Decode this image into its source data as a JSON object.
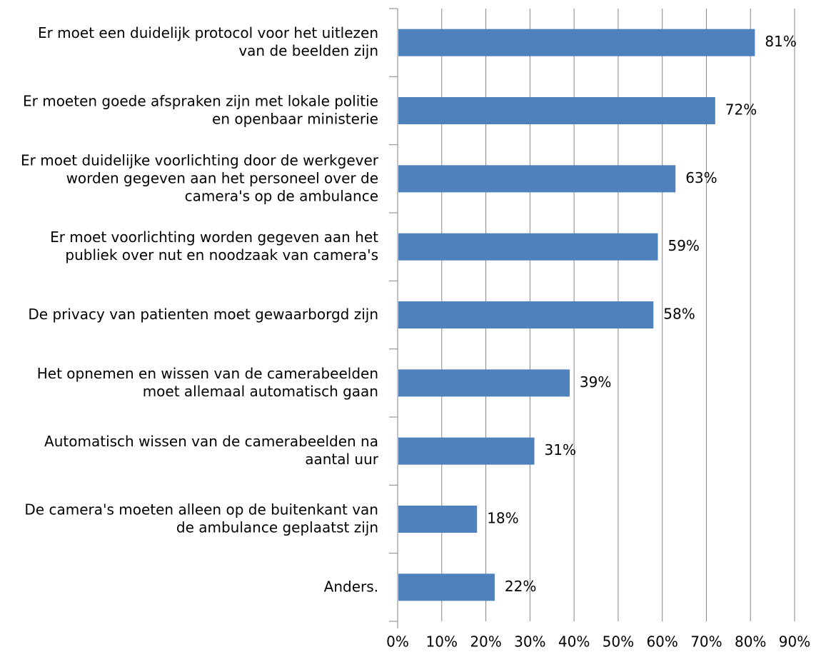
{
  "chart_data": {
    "type": "bar",
    "orientation": "horizontal",
    "categories": [
      [
        "Er moet een duidelijk protocol voor het uitlezen",
        "van de beelden zijn"
      ],
      [
        "Er moeten goede afspraken zijn met lokale politie",
        "en openbaar ministerie"
      ],
      [
        "Er moet duidelijke voorlichting door de werkgever",
        "worden gegeven aan het personeel over de",
        "camera's op de ambulance"
      ],
      [
        "Er moet voorlichting worden gegeven aan het",
        "publiek over nut en noodzaak van camera's"
      ],
      [
        "De privacy van patienten moet gewaarborgd zijn"
      ],
      [
        "Het opnemen en wissen van de camerabeelden",
        "moet allemaal automatisch gaan"
      ],
      [
        "Automatisch wissen van de camerabeelden na",
        "aantal uur"
      ],
      [
        "De camera's moeten alleen op de buitenkant van",
        "de ambulance geplaatst zijn"
      ],
      [
        "Anders."
      ]
    ],
    "values": [
      81,
      72,
      63,
      59,
      58,
      39,
      31,
      18,
      22
    ],
    "data_labels": [
      "81%",
      "72%",
      "63%",
      "59%",
      "58%",
      "39%",
      "31%",
      "18%",
      "22%"
    ],
    "x_ticks": [
      "0%",
      "10%",
      "20%",
      "30%",
      "40%",
      "50%",
      "60%",
      "70%",
      "80%",
      "90%"
    ],
    "xlim": [
      0,
      90
    ],
    "grid": "vertical",
    "legend": "none",
    "bar_color": "#4F81BD",
    "gridline_color": "#868686"
  }
}
